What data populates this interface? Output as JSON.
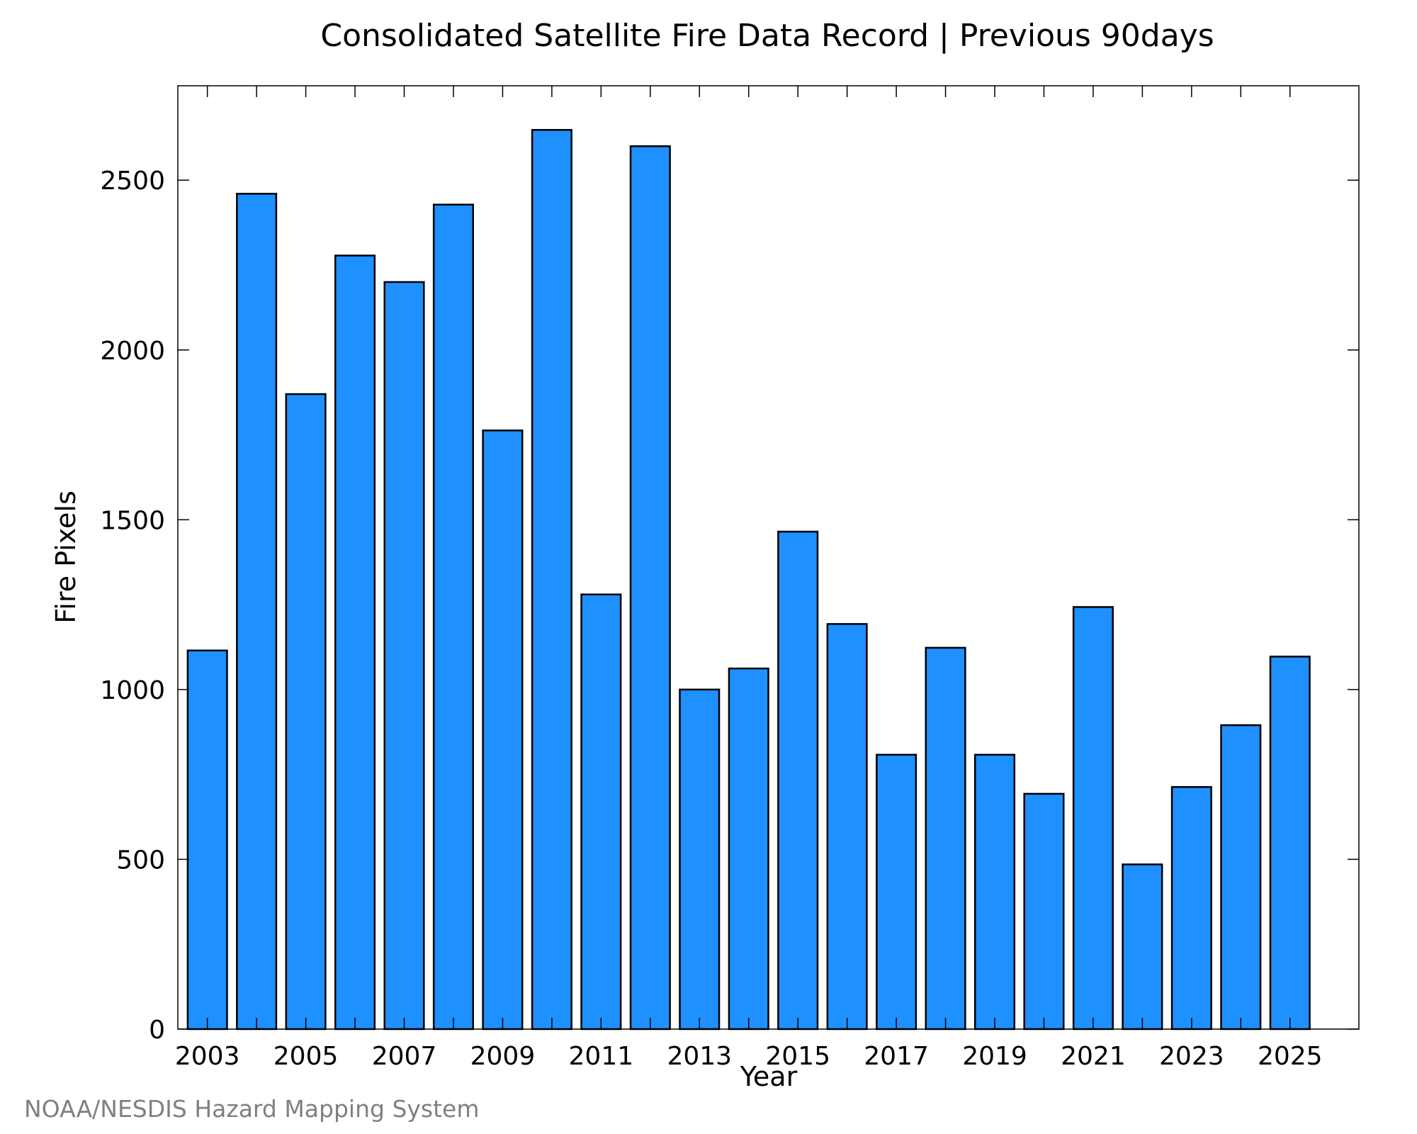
{
  "chart_data": {
    "type": "bar",
    "title": "Consolidated Satellite Fire Data Record | Previous 90days",
    "xlabel": "Year",
    "ylabel": "Fire Pixels",
    "credit": "NOAA/NESDIS Hazard Mapping System",
    "categories": [
      2003,
      2004,
      2005,
      2006,
      2007,
      2008,
      2009,
      2010,
      2011,
      2012,
      2013,
      2014,
      2015,
      2016,
      2017,
      2018,
      2019,
      2020,
      2021,
      2022,
      2023,
      2024,
      2025
    ],
    "values": [
      1115,
      2460,
      1870,
      2278,
      2200,
      2428,
      1763,
      2648,
      1280,
      2600,
      1000,
      1062,
      1465,
      1193,
      808,
      1123,
      808,
      693,
      1243,
      485,
      713,
      895,
      1097
    ],
    "x_tick_labels": [
      "2003",
      "2005",
      "2007",
      "2009",
      "2011",
      "2013",
      "2015",
      "2017",
      "2019",
      "2021",
      "2023",
      "2025"
    ],
    "y_ticks": [
      0,
      500,
      1000,
      1500,
      2000,
      2500
    ],
    "ylim": [
      0,
      2778
    ],
    "xlim": [
      2002.4,
      2026.4
    ],
    "grid": false,
    "bar_color": "#1E90FF",
    "bar_edge_color": "#000000"
  }
}
